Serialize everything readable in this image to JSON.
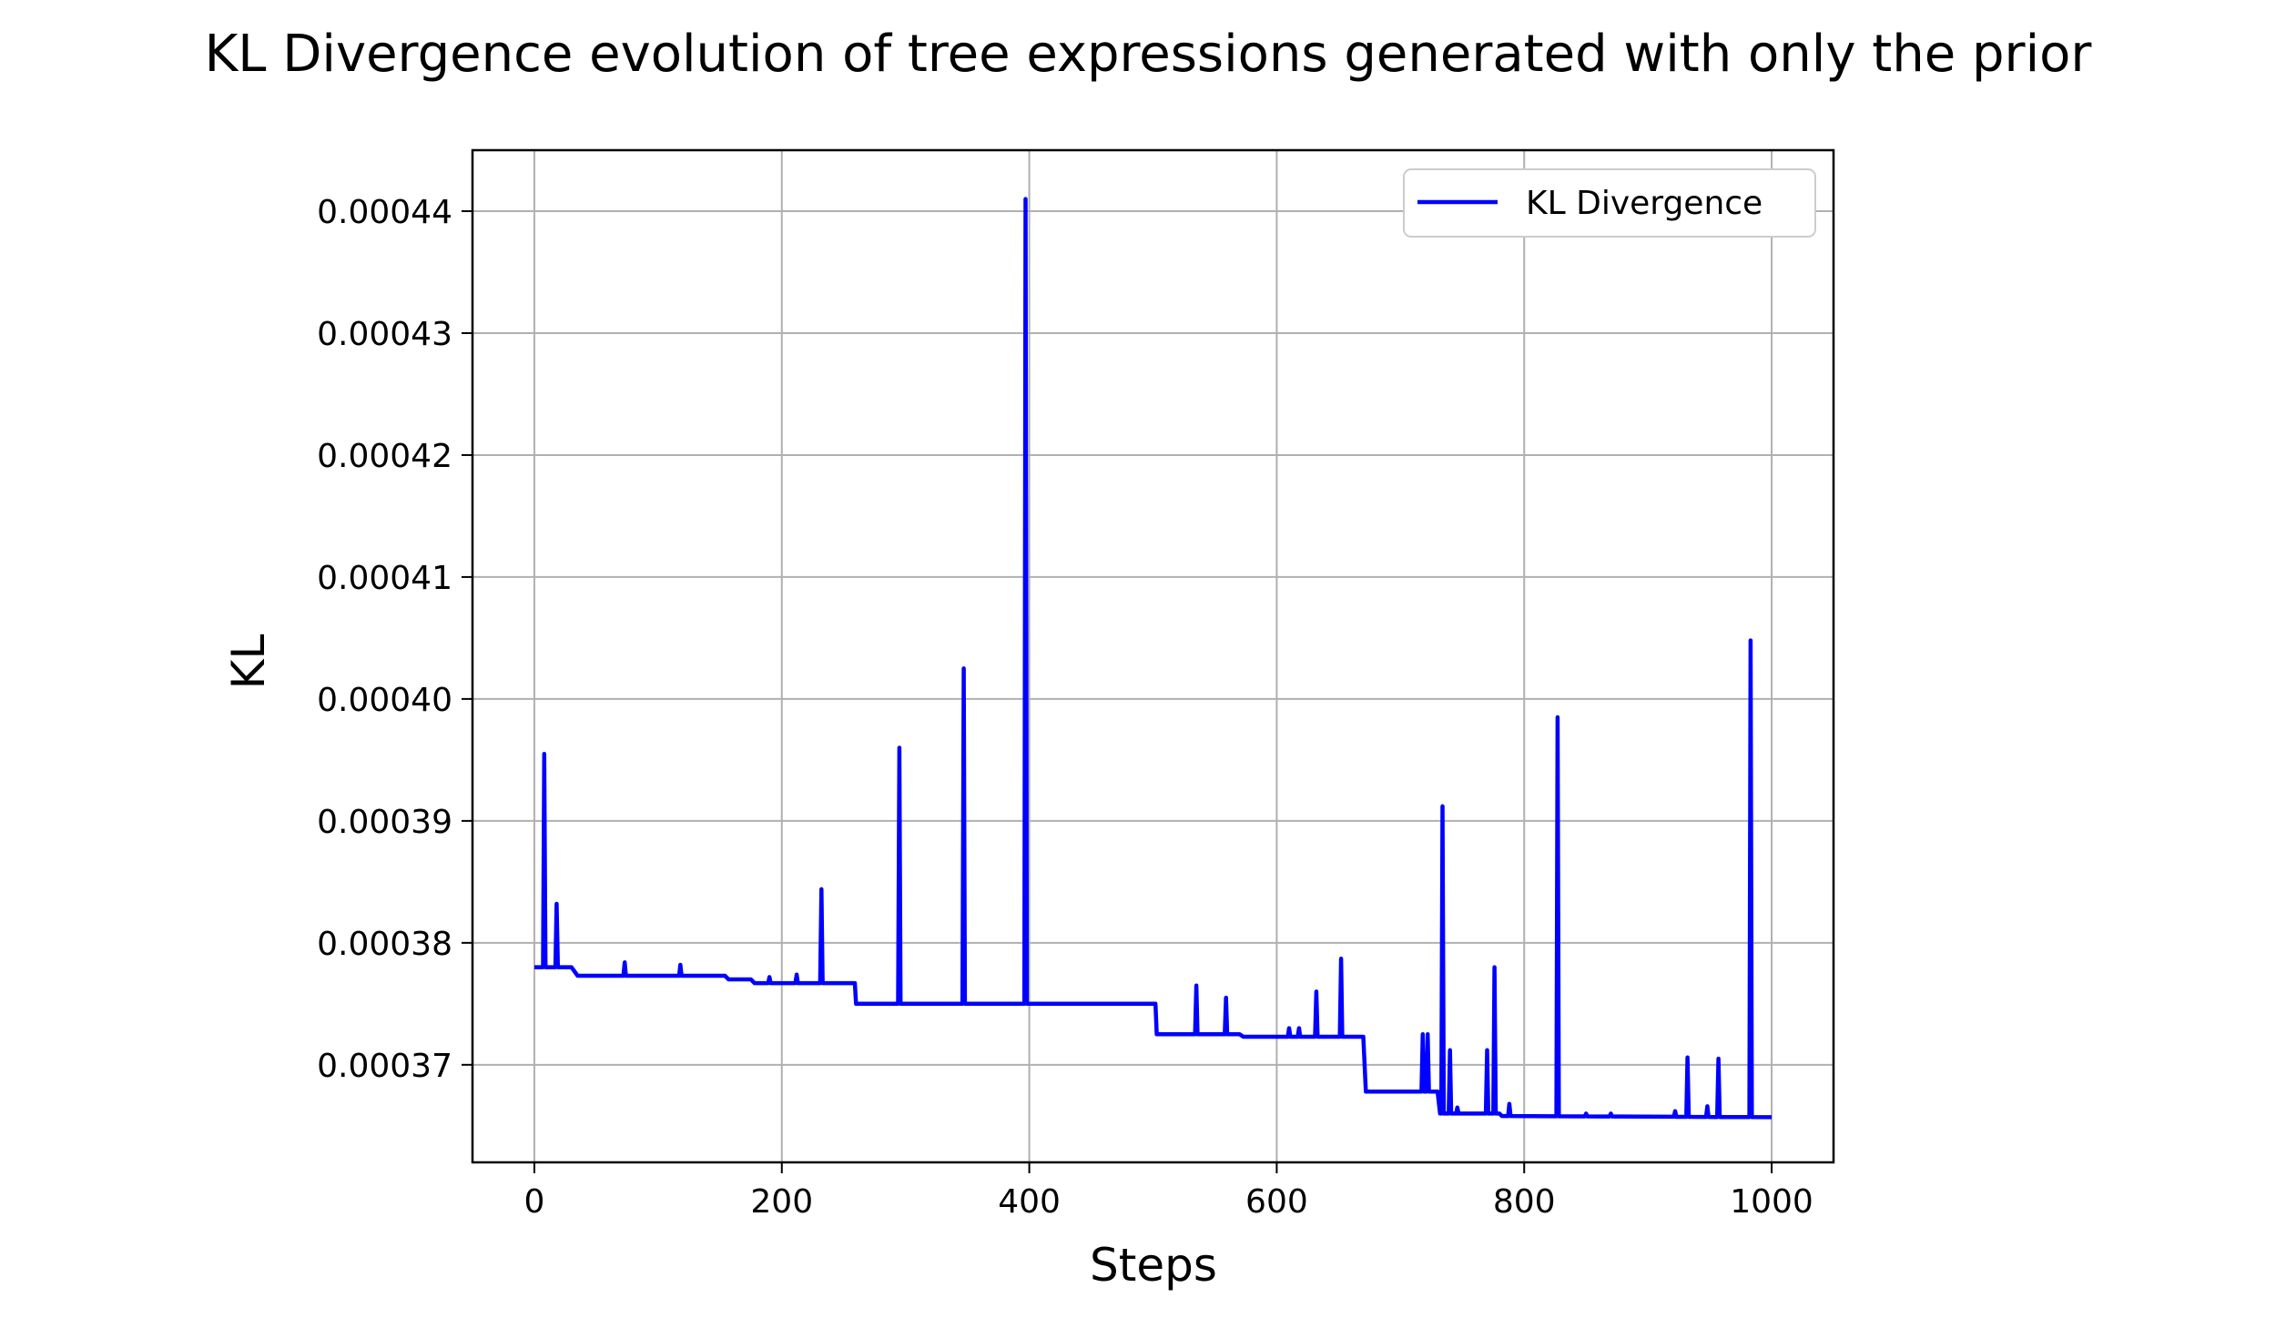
{
  "chart_data": {
    "type": "line",
    "title": "KL Divergence evolution of tree expressions generated with only the prior",
    "xlabel": "Steps",
    "ylabel": "KL",
    "xlim": [
      -50,
      1050
    ],
    "ylim": [
      0.000362,
      0.000445
    ],
    "xticks": [
      0,
      200,
      400,
      600,
      800,
      1000
    ],
    "xtick_labels": [
      "0",
      "200",
      "400",
      "600",
      "800",
      "1000"
    ],
    "yticks": [
      0.00037,
      0.00038,
      0.00039,
      0.0004,
      0.00041,
      0.00042,
      0.00043,
      0.00044
    ],
    "ytick_labels": [
      "0.00037",
      "0.00038",
      "0.00039",
      "0.00040",
      "0.00041",
      "0.00042",
      "0.00043",
      "0.00044"
    ],
    "grid": true,
    "legend": "top-right",
    "colors": {
      "series": "#0000ff",
      "grid": "#b0b0b0"
    },
    "series": [
      {
        "name": "KL Divergence",
        "baseline": [
          [
            0,
            0.000378
          ],
          [
            30,
            0.000378
          ],
          [
            35,
            0.0003773
          ],
          [
            154,
            0.0003773
          ],
          [
            157,
            0.000377
          ],
          [
            175,
            0.000377
          ],
          [
            178,
            0.0003767
          ],
          [
            259,
            0.0003767
          ],
          [
            260,
            0.000375
          ],
          [
            502,
            0.000375
          ],
          [
            503,
            0.0003725
          ],
          [
            570,
            0.0003725
          ],
          [
            573,
            0.0003723
          ],
          [
            670,
            0.0003723
          ],
          [
            672,
            0.0003678
          ],
          [
            730,
            0.0003678
          ],
          [
            732,
            0.000366
          ],
          [
            780,
            0.000366
          ],
          [
            782,
            0.0003658
          ],
          [
            1000,
            0.0003657
          ]
        ],
        "spikes": [
          [
            8,
            0.0003955
          ],
          [
            18,
            0.0003832
          ],
          [
            73,
            0.0003784
          ],
          [
            118,
            0.0003782
          ],
          [
            190,
            0.0003772
          ],
          [
            212,
            0.0003774
          ],
          [
            232,
            0.0003844
          ],
          [
            295,
            0.000396
          ],
          [
            347,
            0.0004025
          ],
          [
            397,
            0.000441
          ],
          [
            535,
            0.0003765
          ],
          [
            559,
            0.0003755
          ],
          [
            610,
            0.000373
          ],
          [
            618,
            0.000373
          ],
          [
            632,
            0.000376
          ],
          [
            652,
            0.0003787
          ],
          [
            718,
            0.0003725
          ],
          [
            722,
            0.0003725
          ],
          [
            734,
            0.0003912
          ],
          [
            740,
            0.0003712
          ],
          [
            746,
            0.0003665
          ],
          [
            770,
            0.0003712
          ],
          [
            776,
            0.000378
          ],
          [
            788,
            0.0003668
          ],
          [
            827,
            0.0003985
          ],
          [
            850,
            0.000366
          ],
          [
            870,
            0.000366
          ],
          [
            922,
            0.0003662
          ],
          [
            932,
            0.0003706
          ],
          [
            948,
            0.0003666
          ],
          [
            957,
            0.0003705
          ],
          [
            983,
            0.0004048
          ]
        ]
      }
    ]
  }
}
